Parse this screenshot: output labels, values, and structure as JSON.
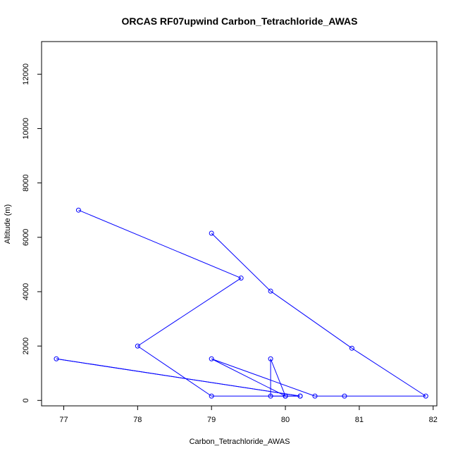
{
  "chart_data": {
    "type": "line",
    "title": "ORCAS RF07upwind Carbon_Tetrachloride_AWAS",
    "xlabel": "Carbon_Tetrachloride_AWAS",
    "ylabel": "Altitude (m)",
    "xlim": [
      76.7,
      82.05
    ],
    "ylim": [
      -200,
      13200
    ],
    "x_ticks": [
      77,
      78,
      79,
      80,
      81,
      82
    ],
    "y_ticks": [
      0,
      2000,
      4000,
      6000,
      8000,
      10000,
      12000
    ],
    "grid": false,
    "series": [
      {
        "color": "#0000ff",
        "marker": "open-circle",
        "points": [
          {
            "x": 79.0,
            "y": 6150
          },
          {
            "x": 79.8,
            "y": 4020
          },
          {
            "x": 80.9,
            "y": 1920
          },
          {
            "x": 81.9,
            "y": 160
          },
          {
            "x": 80.8,
            "y": 160
          },
          {
            "x": 80.4,
            "y": 160
          },
          {
            "x": 79.0,
            "y": 1530
          },
          {
            "x": 80.0,
            "y": 160
          },
          {
            "x": 79.8,
            "y": 160
          },
          {
            "x": 79.8,
            "y": 1530
          },
          {
            "x": 80.0,
            "y": 160
          },
          {
            "x": 80.2,
            "y": 160
          },
          {
            "x": 76.9,
            "y": 1530
          },
          {
            "x": 80.2,
            "y": 160
          },
          {
            "x": 80.0,
            "y": 160
          },
          {
            "x": 79.0,
            "y": 160
          },
          {
            "x": 78.0,
            "y": 2000
          },
          {
            "x": 79.4,
            "y": 4500
          },
          {
            "x": 77.2,
            "y": 7000
          }
        ]
      }
    ]
  }
}
